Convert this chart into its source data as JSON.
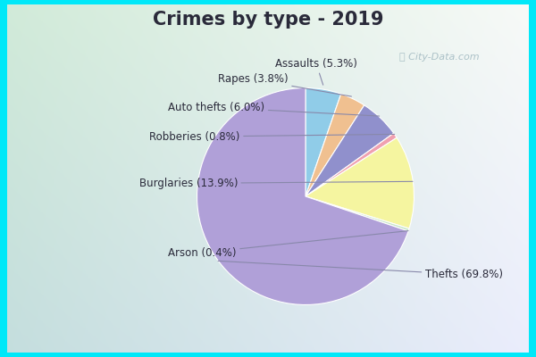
{
  "title": "Crimes by type - 2019",
  "slices": [
    {
      "label": "Thefts",
      "pct": 69.8,
      "color": "#b0a0d8"
    },
    {
      "label": "Burglaries",
      "pct": 13.9,
      "color": "#f5f5a0"
    },
    {
      "label": "Assaults",
      "pct": 5.3,
      "color": "#90cce8"
    },
    {
      "label": "Auto thefts",
      "pct": 6.0,
      "color": "#9090cc"
    },
    {
      "label": "Rapes",
      "pct": 3.8,
      "color": "#f0c090"
    },
    {
      "label": "Robberies",
      "pct": 0.8,
      "color": "#f0a0b0"
    },
    {
      "label": "Arson",
      "pct": 0.4,
      "color": "#c8e6c9"
    }
  ],
  "border_color": "#00e8f8",
  "bg_color_topleft": "#c8e8d0",
  "bg_color_center": "#e8f4f0",
  "bg_color_right": "#dce8f0",
  "title_fontsize": 15,
  "label_fontsize": 8.5,
  "title_color": "#2a2a3a",
  "watermark_color": "#a0b8c0",
  "border_width": 8
}
